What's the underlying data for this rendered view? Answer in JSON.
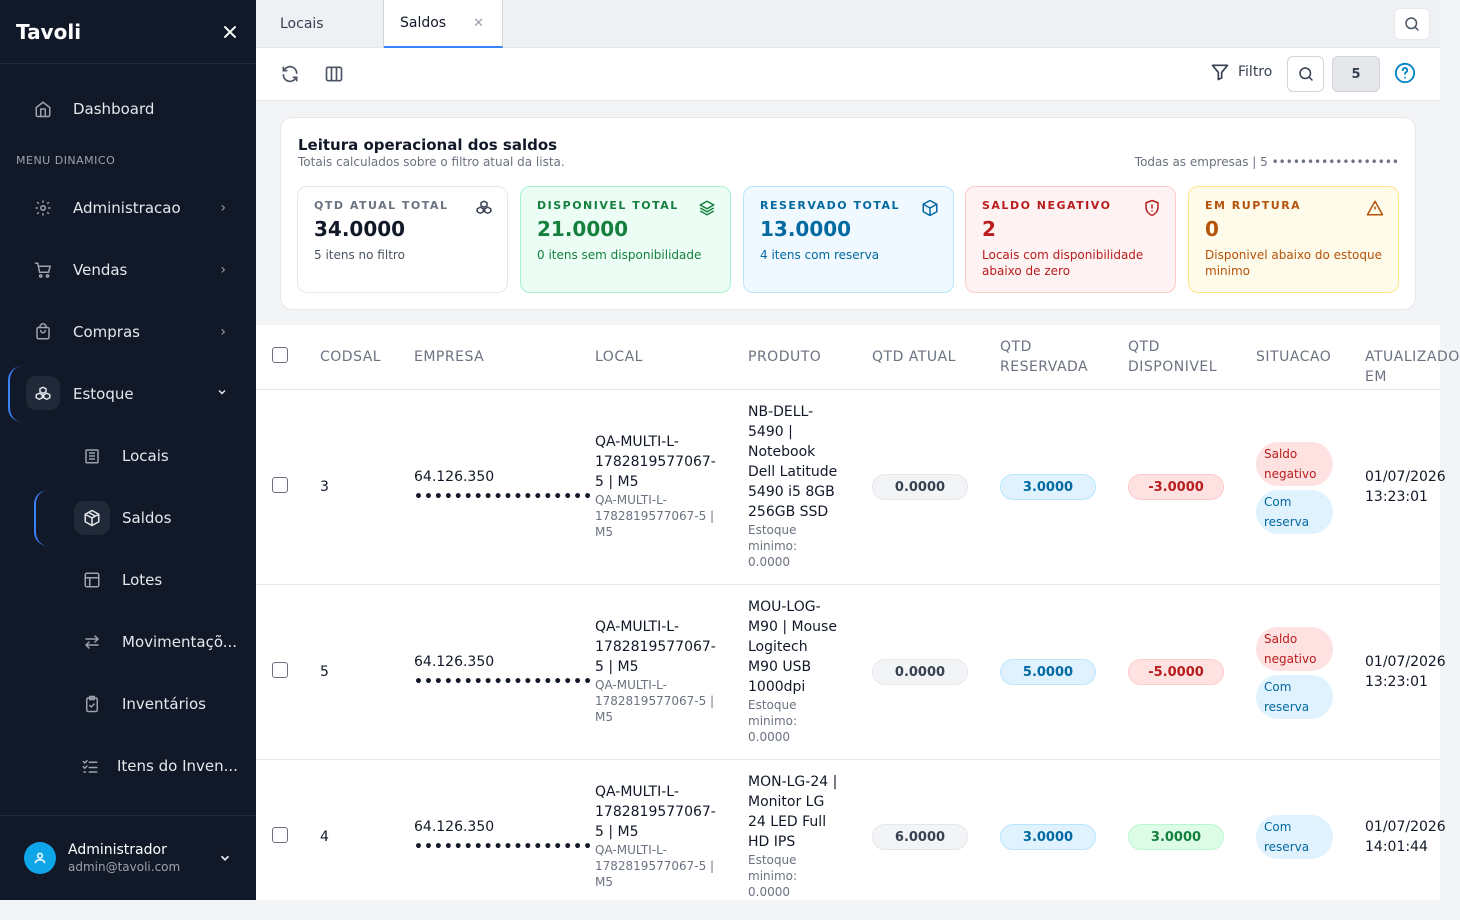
{
  "app": {
    "brand": "Tavoli"
  },
  "sidebar": {
    "dashboard": "Dashboard",
    "section_label": "MENU DINAMICO",
    "items": [
      {
        "label": "Administracao"
      },
      {
        "label": "Vendas"
      },
      {
        "label": "Compras"
      },
      {
        "label": "Estoque"
      }
    ],
    "sub_items": [
      {
        "label": "Locais"
      },
      {
        "label": "Saldos"
      },
      {
        "label": "Lotes"
      },
      {
        "label": "Movimentaçõ..."
      },
      {
        "label": "Inventários"
      },
      {
        "label": "Itens do Inven..."
      }
    ],
    "user": {
      "name": "Administrador",
      "email": "admin@tavoli.com"
    }
  },
  "tabs": [
    {
      "label": "Locais"
    },
    {
      "label": "Saldos"
    }
  ],
  "toolbar": {
    "filter_label": "Filtro",
    "count": "5"
  },
  "summary": {
    "title": "Leitura operacional dos saldos",
    "subtitle": "Totais calculados sobre o filtro atual da lista.",
    "scope": "Todas as empresas | 5 ••••••••••••••••••",
    "kpis": [
      {
        "label": "QTD ATUAL TOTAL",
        "value": "34.0000",
        "note": "5 itens no filtro",
        "color": "#111827"
      },
      {
        "label": "DISPONIVEL TOTAL",
        "value": "21.0000",
        "note": "0 itens sem disponibilidade",
        "color": "#15803d"
      },
      {
        "label": "RESERVADO TOTAL",
        "value": "13.0000",
        "note": "4 itens com reserva",
        "color": "#0369a1"
      },
      {
        "label": "SALDO NEGATIVO",
        "value": "2",
        "note": "Locais com disponibilidade abaixo de zero",
        "color": "#b91c1c"
      },
      {
        "label": "EM RUPTURA",
        "value": "0",
        "note": "Disponivel abaixo do estoque minimo",
        "color": "#b45309"
      }
    ]
  },
  "table": {
    "headers": {
      "codsal": "CODSAL",
      "empresa": "EMPRESA",
      "local": "LOCAL",
      "produto": "PRODUTO",
      "qtd_atual": "QTD ATUAL",
      "qtd_reservada_1": "QTD",
      "qtd_reservada_2": "RESERVADA",
      "qtd_disponivel_1": "QTD",
      "qtd_disponivel_2": "DISPONIVEL",
      "situacao": "SITUACAO",
      "atualizado_1": "ATUALIZADO",
      "atualizado_2": "EM"
    },
    "rows": [
      {
        "codsal": "3",
        "empresa": "64.126.350",
        "empresa_mask": "••••••••••••••••••",
        "local_l1": "QA-MULTI-L-",
        "local_l2": "1782819577067-",
        "local_l3": "5 | M5",
        "local_s1": "QA-MULTI-L-",
        "local_s2": "1782819577067-5 |",
        "local_s3": "M5",
        "produto_lines": [
          "NB-DELL-",
          "5490 |",
          "Notebook",
          "Dell Latitude",
          "5490 i5 8GB",
          "256GB SSD"
        ],
        "min_l1": "Estoque",
        "min_l2": "minimo:",
        "min_l3": "0.0000",
        "qtd_atual": "0.0000",
        "qtd_reservada": "3.0000",
        "qtd_disponivel": "-3.0000",
        "badges": [
          "Saldo negativo",
          "Com reserva"
        ],
        "data": "01/07/2026",
        "hora": "13:23:01"
      },
      {
        "codsal": "5",
        "empresa": "64.126.350",
        "empresa_mask": "••••••••••••••••••",
        "local_l1": "QA-MULTI-L-",
        "local_l2": "1782819577067-",
        "local_l3": "5 | M5",
        "local_s1": "QA-MULTI-L-",
        "local_s2": "1782819577067-5 |",
        "local_s3": "M5",
        "produto_lines": [
          "MOU-LOG-",
          "M90 | Mouse",
          "Logitech",
          "M90 USB",
          "1000dpi"
        ],
        "min_l1": "Estoque",
        "min_l2": "minimo:",
        "min_l3": "0.0000",
        "qtd_atual": "0.0000",
        "qtd_reservada": "5.0000",
        "qtd_disponivel": "-5.0000",
        "badges": [
          "Saldo negativo",
          "Com reserva"
        ],
        "data": "01/07/2026",
        "hora": "13:23:01"
      },
      {
        "codsal": "4",
        "empresa": "64.126.350",
        "empresa_mask": "••••••••••••••••••",
        "local_l1": "QA-MULTI-L-",
        "local_l2": "1782819577067-",
        "local_l3": "5 | M5",
        "local_s1": "QA-MULTI-L-",
        "local_s2": "1782819577067-5 |",
        "local_s3": "M5",
        "produto_lines": [
          "MON-LG-24 |",
          "Monitor LG",
          "24 LED Full",
          "HD IPS"
        ],
        "min_l1": "Estoque",
        "min_l2": "minimo:",
        "min_l3": "0.0000",
        "qtd_atual": "6.0000",
        "qtd_reservada": "3.0000",
        "qtd_disponivel": "3.0000",
        "badges": [
          "Com reserva"
        ],
        "data": "01/07/2026",
        "hora": "14:01:44"
      }
    ]
  }
}
